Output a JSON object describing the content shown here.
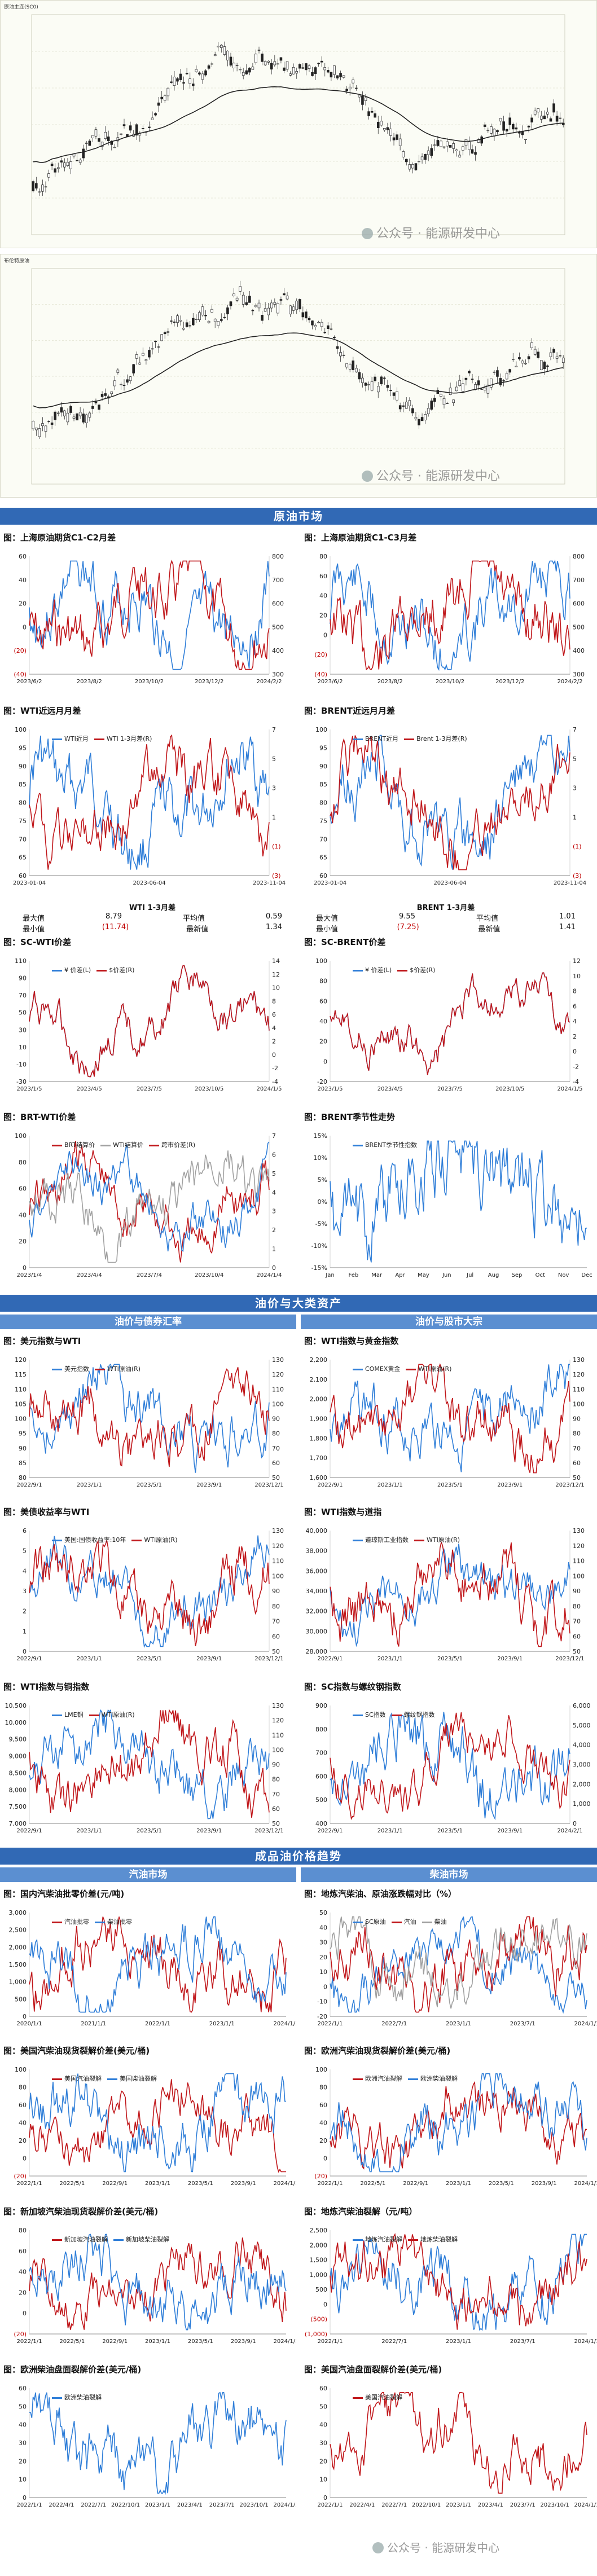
{
  "kline": [
    {
      "label": "原油主连(SC0)",
      "wm": "公众号 · 能源研发中心"
    },
    {
      "label": "布伦特原油",
      "wm": "公众号 · 能源研发中心"
    }
  ],
  "sections": {
    "crude": "原油市场",
    "assets": "油价与大类资产",
    "assets_left": "油价与债券汇率",
    "assets_right": "油价与股市大宗",
    "products": "成品油价格趋势",
    "products_left": "汽油市场",
    "products_right": "柴油市场"
  },
  "watermark": "公众号 · 能源研发中心",
  "stats": [
    {
      "title": "WTI 1-3月差",
      "rows": [
        [
          "最大值",
          "8.79",
          "平均值",
          "0.59"
        ],
        [
          "最小值",
          "(11.74)",
          "最新值",
          "1.34"
        ]
      ]
    },
    {
      "title": "BRENT 1-3月差",
      "rows": [
        [
          "最大值",
          "9.55",
          "平均值",
          "1.01"
        ],
        [
          "最小值",
          "(7.25)",
          "最新值",
          "1.41"
        ]
      ]
    }
  ],
  "colors": {
    "blue": "#2f7ed8",
    "red": "#c0171b",
    "gray": "#a0a0a0",
    "banner": "#3169b5"
  },
  "charts": [
    {
      "id": "c1",
      "title": "图：上海原油期货C1-C2月差",
      "legend": [],
      "yl": [
        "60",
        "40",
        "20",
        "0",
        "(20)",
        "(40)"
      ],
      "yr": [
        "800",
        "700",
        "600",
        "500",
        "400",
        "300"
      ],
      "xt": [
        "2023/6/2",
        "2023/8/2",
        "2023/10/2",
        "2023/12/2",
        "2024/2/2"
      ],
      "series": [
        {
          "c": "blue",
          "seed": 3,
          "amp": 0.35
        },
        {
          "c": "red",
          "seed": 7,
          "amp": 0.35
        }
      ]
    },
    {
      "id": "c2",
      "title": "图：上海原油期货C1-C3月差",
      "legend": [],
      "yl": [
        "80",
        "60",
        "40",
        "20",
        "0",
        "(20)",
        "(40)"
      ],
      "yr": [
        "800",
        "700",
        "600",
        "500",
        "400",
        "300"
      ],
      "xt": [
        "2023/6/2",
        "2023/8/2",
        "2023/10/2",
        "2023/12/2",
        "2024/2/2"
      ],
      "series": [
        {
          "c": "blue",
          "seed": 11,
          "amp": 0.35
        },
        {
          "c": "red",
          "seed": 13,
          "amp": 0.35
        }
      ]
    },
    {
      "id": "c3",
      "title": "图：WTI近远月月差",
      "legend": [
        {
          "name": "WTI近月",
          "c": "blue"
        },
        {
          "name": "WTI 1-3月差(R)",
          "c": "red"
        }
      ],
      "yl": [
        "100",
        "95",
        "90",
        "85",
        "80",
        "75",
        "70",
        "65",
        "60"
      ],
      "yr": [
        "7",
        "5",
        "3",
        "1",
        "(1)",
        "(3)"
      ],
      "xt": [
        "2023-01-04",
        "2023-06-04",
        "2023-11-04"
      ],
      "series": [
        {
          "c": "blue",
          "seed": 17,
          "amp": 0.3
        },
        {
          "c": "red",
          "seed": 19,
          "amp": 0.25
        }
      ]
    },
    {
      "id": "c4",
      "title": "图：BRENT近远月月差",
      "legend": [
        {
          "name": "BRENT近月",
          "c": "blue"
        },
        {
          "name": "Brent 1-3月差(R)",
          "c": "red"
        }
      ],
      "yl": [
        "100",
        "95",
        "90",
        "85",
        "80",
        "75",
        "70",
        "65",
        "60"
      ],
      "yr": [
        "7",
        "5",
        "3",
        "1",
        "(1)",
        "(3)"
      ],
      "xt": [
        "2023-01-04",
        "2023-06-04",
        "2023-11-04"
      ],
      "series": [
        {
          "c": "blue",
          "seed": 23,
          "amp": 0.3
        },
        {
          "c": "red",
          "seed": 29,
          "amp": 0.25
        }
      ]
    },
    {
      "id": "c5",
      "title": "图：SC-WTI价差",
      "legend": [
        {
          "name": "¥ 价差(L)",
          "c": "blue"
        },
        {
          "name": "$价差(R)",
          "c": "red"
        }
      ],
      "yl": [
        "110",
        "90",
        "70",
        "50",
        "30",
        "10",
        "-10",
        "-30"
      ],
      "yr": [
        "14",
        "12",
        "10",
        "8",
        "6",
        "4",
        "2",
        "0",
        "-2",
        "-4"
      ],
      "xt": [
        "2023/1/5",
        "2023/4/5",
        "2023/7/5",
        "2023/10/5",
        "2024/1/5"
      ],
      "series": [
        {
          "c": "blue",
          "seed": 31,
          "amp": 0.2
        },
        {
          "c": "red",
          "seed": 31,
          "amp": 0.2
        }
      ]
    },
    {
      "id": "c6",
      "title": "图：SC-BRENT价差",
      "legend": [
        {
          "name": "¥ 价差(L)",
          "c": "blue"
        },
        {
          "name": "$价差(R)",
          "c": "red"
        }
      ],
      "yl": [
        "100",
        "80",
        "60",
        "40",
        "20",
        "0",
        "-20"
      ],
      "yr": [
        "12",
        "10",
        "8",
        "6",
        "4",
        "2",
        "0",
        "-2",
        "-4"
      ],
      "xt": [
        "2023/1/5",
        "2023/4/5",
        "2023/7/5",
        "2023/10/5",
        "2024/1/5"
      ],
      "series": [
        {
          "c": "blue",
          "seed": 37,
          "amp": 0.2
        },
        {
          "c": "red",
          "seed": 37,
          "amp": 0.2
        }
      ]
    },
    {
      "id": "c7",
      "title": "图：BRT-WTI价差",
      "legend": [
        {
          "name": "BRT结算价",
          "c": "red"
        },
        {
          "name": "WTI结算价",
          "c": "gray"
        },
        {
          "name": "跨市价差(R)",
          "c": "red"
        }
      ],
      "yl": [
        "100",
        "80",
        "60",
        "40",
        "20",
        "0"
      ],
      "yr": [
        "7",
        "6",
        "5",
        "4",
        "3",
        "2",
        "1",
        "0"
      ],
      "xt": [
        "2023/1/4",
        "2023/4/4",
        "2023/7/4",
        "2023/10/4",
        "2024/1/4"
      ],
      "series": [
        {
          "c": "red",
          "seed": 41,
          "amp": 0.25
        },
        {
          "c": "gray",
          "seed": 43,
          "amp": 0.25
        },
        {
          "c": "blue",
          "seed": 47,
          "amp": 0.2
        }
      ]
    },
    {
      "id": "c8",
      "title": "图：BRENT季节性走势",
      "legend": [
        {
          "name": "BRENT季节性指数",
          "c": "blue"
        }
      ],
      "yl": [
        "15%",
        "10%",
        "5%",
        "0%",
        "-5%",
        "-10%",
        "-15%"
      ],
      "yr": [],
      "xt": [
        "Jan",
        "Feb",
        "Mar",
        "Apr",
        "May",
        "Jun",
        "Jul",
        "Aug",
        "Sep",
        "Oct",
        "Nov",
        "Dec"
      ],
      "series": [
        {
          "c": "blue",
          "seed": 53,
          "amp": 0.45,
          "shape": "hump"
        }
      ]
    },
    {
      "id": "c9",
      "title": "图：美元指数与WTI",
      "legend": [
        {
          "name": "美元指数",
          "c": "blue"
        },
        {
          "name": "WTI原油(R)",
          "c": "red"
        }
      ],
      "yl": [
        "120",
        "115",
        "110",
        "105",
        "100",
        "95",
        "90",
        "85",
        "80"
      ],
      "yr": [
        "130",
        "120",
        "110",
        "100",
        "90",
        "80",
        "70",
        "60",
        "50"
      ],
      "xt": [
        "2022/9/1",
        "2023/1/1",
        "2023/5/1",
        "2023/9/1",
        "2023/12/1"
      ],
      "series": [
        {
          "c": "blue",
          "seed": 59,
          "amp": 0.3
        },
        {
          "c": "red",
          "seed": 61,
          "amp": 0.3
        }
      ]
    },
    {
      "id": "c10",
      "title": "图：WTI指数与黄金指数",
      "legend": [
        {
          "name": "COMEX黄金",
          "c": "blue"
        },
        {
          "name": "WTI原油(R)",
          "c": "red"
        }
      ],
      "yl": [
        "2,200",
        "2,100",
        "2,000",
        "1,900",
        "1,800",
        "1,700",
        "1,600"
      ],
      "yr": [
        "130",
        "120",
        "110",
        "100",
        "90",
        "80",
        "70",
        "60",
        "50"
      ],
      "xt": [
        "2022/9/1",
        "2023/1/1",
        "2023/5/1",
        "2023/9/1",
        "2023/12/1"
      ],
      "series": [
        {
          "c": "blue",
          "seed": 67,
          "amp": 0.3,
          "trend": 0.4
        },
        {
          "c": "red",
          "seed": 71,
          "amp": 0.3
        }
      ]
    },
    {
      "id": "c11",
      "title": "图：美债收益率与WTI",
      "legend": [
        {
          "name": "美国:国债收益率:10年",
          "c": "blue"
        },
        {
          "name": "WTI原油(R)",
          "c": "red"
        }
      ],
      "yl": [
        "6",
        "5",
        "4",
        "3",
        "2",
        "1",
        "0"
      ],
      "yr": [
        "130",
        "120",
        "110",
        "100",
        "90",
        "80",
        "70",
        "60",
        "50"
      ],
      "xt": [
        "2022/9/1",
        "2023/1/1",
        "2023/5/1",
        "2023/9/1",
        "2023/12/1"
      ],
      "series": [
        {
          "c": "blue",
          "seed": 73,
          "amp": 0.25
        },
        {
          "c": "red",
          "seed": 79,
          "amp": 0.3
        }
      ]
    },
    {
      "id": "c12",
      "title": "图：WTI指数与道指",
      "legend": [
        {
          "name": "道琼斯工业指数",
          "c": "blue"
        },
        {
          "name": "WTI原油(R)",
          "c": "red"
        }
      ],
      "yl": [
        "40,000",
        "38,000",
        "36,000",
        "34,000",
        "32,000",
        "30,000",
        "28,000"
      ],
      "yr": [
        "130",
        "120",
        "110",
        "100",
        "90",
        "80",
        "70",
        "60",
        "50"
      ],
      "xt": [
        "2022/9/1",
        "2023/1/1",
        "2023/5/1",
        "2023/9/1",
        "2023/12/1"
      ],
      "series": [
        {
          "c": "blue",
          "seed": 83,
          "amp": 0.25,
          "trend": 0.5
        },
        {
          "c": "red",
          "seed": 89,
          "amp": 0.3
        }
      ]
    },
    {
      "id": "c13",
      "title": "图：WTI指数与铜指数",
      "legend": [
        {
          "name": "LME铜",
          "c": "blue"
        },
        {
          "name": "WTI原油(R)",
          "c": "red"
        }
      ],
      "yl": [
        "10,500",
        "10,000",
        "9,500",
        "9,000",
        "8,500",
        "8,000",
        "7,500",
        "7,000"
      ],
      "yr": [
        "130",
        "120",
        "110",
        "100",
        "90",
        "80",
        "70",
        "60",
        "50"
      ],
      "xt": [
        "2022/9/1",
        "2023/1/1",
        "2023/5/1",
        "2023/9/1",
        "2023/12/1"
      ],
      "series": [
        {
          "c": "blue",
          "seed": 97,
          "amp": 0.3
        },
        {
          "c": "red",
          "seed": 101,
          "amp": 0.3
        }
      ]
    },
    {
      "id": "c14",
      "title": "图：SC指数与螺纹钢指数",
      "legend": [
        {
          "name": "SC指数",
          "c": "blue"
        },
        {
          "name": "螺纹钢指数",
          "c": "red"
        }
      ],
      "yl": [
        "900",
        "800",
        "700",
        "600",
        "500",
        "400"
      ],
      "yr": [
        "6,000",
        "5,000",
        "4,000",
        "3,000",
        "2,000",
        "1,000",
        "0"
      ],
      "xt": [
        "2022/9/1",
        "2023/1/1",
        "2023/5/1",
        "2023/9/1",
        "2024/2/1"
      ],
      "series": [
        {
          "c": "blue",
          "seed": 103,
          "amp": 0.35
        },
        {
          "c": "red",
          "seed": 107,
          "amp": 0.25
        }
      ]
    },
    {
      "id": "c15",
      "title": "图：国内汽柴油批零价差(元/吨)",
      "legend": [
        {
          "name": "汽油批零",
          "c": "red"
        },
        {
          "name": "柴油批零",
          "c": "blue"
        }
      ],
      "yl": [
        "3,000",
        "2,500",
        "2,000",
        "1,500",
        "1,000",
        "500",
        "0"
      ],
      "yr": [],
      "xt": [
        "2020/1/1",
        "2021/1/1",
        "2022/1/1",
        "2023/1/1",
        "2024/1/1"
      ],
      "series": [
        {
          "c": "red",
          "seed": 109,
          "amp": 0.35
        },
        {
          "c": "blue",
          "seed": 113,
          "amp": 0.35
        }
      ]
    },
    {
      "id": "c16",
      "title": "图：地炼汽柴油、原油涨跌幅对比（%）",
      "legend": [
        {
          "name": "SC原油",
          "c": "blue"
        },
        {
          "name": "汽油",
          "c": "red"
        },
        {
          "name": "柴油",
          "c": "gray"
        }
      ],
      "yl": [
        "50",
        "40",
        "30",
        "20",
        "10",
        "0",
        "-10",
        "-20"
      ],
      "yr": [],
      "xt": [
        "2022/1/1",
        "2022/7/1",
        "2023/1/1",
        "2023/7/1",
        "2024/1/1"
      ],
      "series": [
        {
          "c": "blue",
          "seed": 127,
          "amp": 0.3
        },
        {
          "c": "red",
          "seed": 131,
          "amp": 0.35
        },
        {
          "c": "gray",
          "seed": 137,
          "amp": 0.3
        }
      ]
    },
    {
      "id": "c17",
      "title": "图：美国汽柴油现货裂解价差(美元/桶)",
      "legend": [
        {
          "name": "美国汽油裂解",
          "c": "red"
        },
        {
          "name": "美国柴油裂解",
          "c": "blue"
        }
      ],
      "yl": [
        "100",
        "80",
        "60",
        "40",
        "20",
        "0",
        "(20)"
      ],
      "yr": [],
      "xt": [
        "2022/1/1",
        "2022/5/1",
        "2022/9/1",
        "2023/1/1",
        "2023/5/1",
        "2023/9/1",
        "2024/1/1"
      ],
      "series": [
        {
          "c": "red",
          "seed": 139,
          "amp": 0.3
        },
        {
          "c": "blue",
          "seed": 149,
          "amp": 0.35
        }
      ]
    },
    {
      "id": "c18",
      "title": "图：欧洲汽柴油现货裂解价差(美元/桶)",
      "legend": [
        {
          "name": "欧洲汽油裂解",
          "c": "red"
        },
        {
          "name": "欧洲柴油裂解",
          "c": "blue"
        }
      ],
      "yl": [
        "100",
        "80",
        "60",
        "40",
        "20",
        "0",
        "(20)"
      ],
      "yr": [],
      "xt": [
        "2022/1/1",
        "2022/5/1",
        "2022/9/1",
        "2023/1/1",
        "2023/5/1",
        "2023/9/1",
        "2024/1/1"
      ],
      "series": [
        {
          "c": "red",
          "seed": 151,
          "amp": 0.3
        },
        {
          "c": "blue",
          "seed": 157,
          "amp": 0.35
        }
      ]
    },
    {
      "id": "c19",
      "title": "图：新加坡汽柴油现货裂解价差(美元/桶)",
      "legend": [
        {
          "name": "新加坡汽油裂解",
          "c": "red"
        },
        {
          "name": "新加坡柴油裂解",
          "c": "blue"
        }
      ],
      "yl": [
        "80",
        "60",
        "40",
        "20",
        "0",
        "(20)"
      ],
      "yr": [],
      "xt": [
        "2022/1/1",
        "2022/5/1",
        "2022/9/1",
        "2023/1/1",
        "2023/5/1",
        "2023/9/1",
        "2024/1/1"
      ],
      "series": [
        {
          "c": "red",
          "seed": 163,
          "amp": 0.3
        },
        {
          "c": "blue",
          "seed": 167,
          "amp": 0.35
        }
      ]
    },
    {
      "id": "c20",
      "title": "图：地炼汽柴油裂解（元/吨）",
      "legend": [
        {
          "name": "地炼汽油裂解",
          "c": "blue"
        },
        {
          "name": "地炼柴油裂解",
          "c": "red"
        }
      ],
      "yl": [
        "2,500",
        "2,000",
        "1,500",
        "1,000",
        "500",
        "0",
        "(500)",
        "(1,000)"
      ],
      "yr": [],
      "xt": [
        "2022/1/1",
        "2022/7/1",
        "2023/1/1",
        "2023/7/1",
        "2024/1/1"
      ],
      "series": [
        {
          "c": "blue",
          "seed": 173,
          "amp": 0.35
        },
        {
          "c": "red",
          "seed": 179,
          "amp": 0.35
        }
      ]
    },
    {
      "id": "c21",
      "title": "图：欧洲柴油盘面裂解价差(美元/桶)",
      "legend": [
        {
          "name": "欧洲柴油裂解",
          "c": "blue"
        }
      ],
      "yl": [
        "60",
        "50",
        "40",
        "30",
        "20",
        "10",
        "0"
      ],
      "yr": [],
      "xt": [
        "2022/1/1",
        "2022/4/1",
        "2022/7/1",
        "2022/10/1",
        "2023/1/1",
        "2023/4/1",
        "2023/7/1",
        "2023/10/1",
        "2024/1/1"
      ],
      "series": [
        {
          "c": "blue",
          "seed": 181,
          "amp": 0.4
        }
      ]
    },
    {
      "id": "c22",
      "title": "图：美国汽油盘面裂解价差(美元/桶)",
      "legend": [
        {
          "name": "美国汽油裂解",
          "c": "red"
        }
      ],
      "yl": [
        "60",
        "50",
        "40",
        "30",
        "20",
        "10",
        "0"
      ],
      "yr": [],
      "xt": [
        "2022/1/1",
        "2022/4/1",
        "2022/7/1",
        "2022/10/1",
        "2023/1/1",
        "2023/4/1",
        "2023/7/1",
        "2023/10/1",
        "2024/1/1"
      ],
      "series": [
        {
          "c": "red",
          "seed": 191,
          "amp": 0.35
        }
      ]
    }
  ],
  "chart_data": {
    "type": "line",
    "title": "",
    "series": []
  }
}
